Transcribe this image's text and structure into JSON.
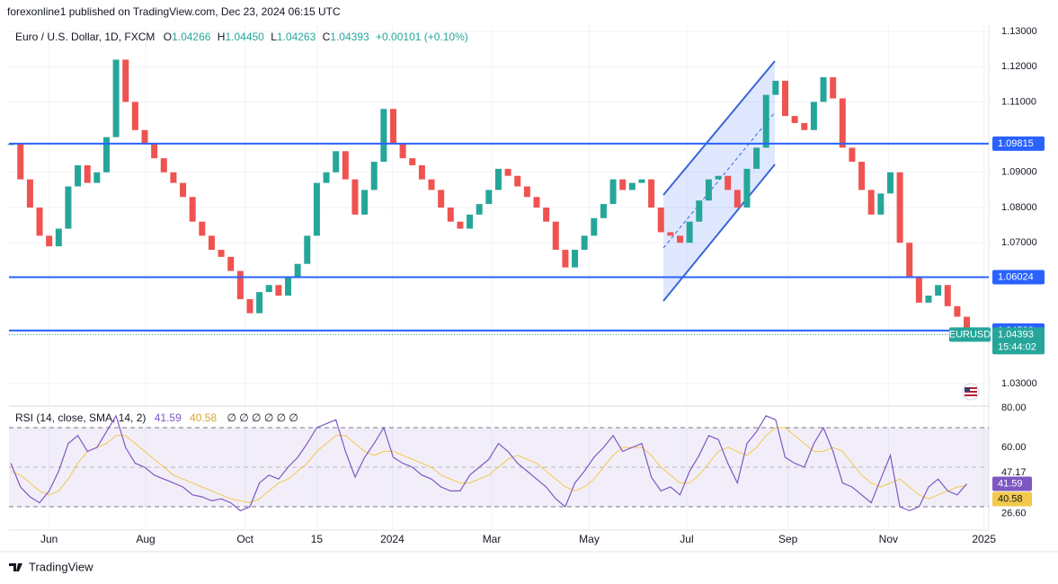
{
  "header": {
    "publisher": "forexonline1 published on TradingView.com, Dec 23, 2024 06:15 UTC"
  },
  "footer": {
    "brand": "TradingView"
  },
  "chart_data": [
    {
      "type": "candlestick",
      "title": "Euro / U.S. Dollar, 1D, FXCM",
      "legend": [
        {
          "key": "O",
          "text": "1.04266"
        },
        {
          "key": "H",
          "text": "1.04450"
        },
        {
          "key": "L",
          "text": "1.04263"
        },
        {
          "key": "C",
          "text": "1.04393"
        }
      ],
      "change": "+0.00101 (+0.10%)",
      "close": [
        1.098,
        1.088,
        1.08,
        1.072,
        1.069,
        1.074,
        1.086,
        1.092,
        1.087,
        1.09,
        1.1,
        1.122,
        1.11,
        1.102,
        1.098,
        1.094,
        1.09,
        1.087,
        1.083,
        1.076,
        1.072,
        1.068,
        1.066,
        1.062,
        1.054,
        1.05,
        1.056,
        1.058,
        1.055,
        1.06,
        1.064,
        1.072,
        1.087,
        1.09,
        1.096,
        1.088,
        1.078,
        1.085,
        1.093,
        1.108,
        1.098,
        1.094,
        1.092,
        1.088,
        1.085,
        1.08,
        1.076,
        1.074,
        1.078,
        1.081,
        1.085,
        1.091,
        1.089,
        1.086,
        1.083,
        1.08,
        1.076,
        1.068,
        1.063,
        1.068,
        1.072,
        1.077,
        1.081,
        1.088,
        1.085,
        1.087,
        1.088,
        1.08,
        1.073,
        1.072,
        1.07,
        1.076,
        1.082,
        1.088,
        1.089,
        1.085,
        1.08,
        1.091,
        1.097,
        1.112,
        1.116,
        1.106,
        1.104,
        1.102,
        1.11,
        1.117,
        1.111,
        1.097,
        1.093,
        1.085,
        1.078,
        1.084,
        1.09,
        1.07,
        1.06,
        1.053,
        1.055,
        1.058,
        1.052,
        1.049,
        1.04393
      ],
      "up_color": "#26a69a",
      "down_color": "#ef5350",
      "xlim": [
        -0.2,
        102.3
      ],
      "xticks": [
        {
          "value": 4.0,
          "label": "Jun"
        },
        {
          "value": 14.1,
          "label": "Aug"
        },
        {
          "value": 24.5,
          "label": "Oct"
        },
        {
          "value": 32.0,
          "label": "15"
        },
        {
          "value": 39.9,
          "label": "2024"
        },
        {
          "value": 50.3,
          "label": "Mar"
        },
        {
          "value": 60.5,
          "label": "May"
        },
        {
          "value": 70.7,
          "label": "Jul"
        },
        {
          "value": 81.3,
          "label": "Sep"
        },
        {
          "value": 91.8,
          "label": "Nov"
        },
        {
          "value": 101.8,
          "label": "2025"
        }
      ],
      "ylim": [
        1.02413,
        1.13179
      ],
      "yticks": [
        {
          "value": 1.13,
          "label": "1.13000"
        },
        {
          "value": 1.12,
          "label": "1.12000"
        },
        {
          "value": 1.11,
          "label": "1.11000"
        },
        {
          "value": 1.09,
          "label": "1.09000"
        },
        {
          "value": 1.08,
          "label": "1.08000"
        },
        {
          "value": 1.07,
          "label": "1.07000"
        },
        {
          "value": 1.03,
          "label": "1.03000"
        }
      ],
      "grid": true,
      "hlines": [
        1.09815,
        1.06024,
        1.04508
      ],
      "hline_color": "#2962ff",
      "last": {
        "value": 1.04393,
        "symbol": "EURUSD",
        "countdown": "15:44:02",
        "color": "#26a69a"
      }
    },
    {
      "type": "line",
      "title": "RSI (14, close, SMA, 14, 2)",
      "extra": "∅ ∅ ∅ ∅ ∅ ∅",
      "series": [
        {
          "color": "#7e57c2",
          "values": [
            52,
            40,
            35,
            32,
            38,
            48,
            62,
            66,
            58,
            60,
            68,
            76,
            60,
            52,
            50,
            46,
            44,
            42,
            40,
            36,
            35,
            33,
            34,
            32,
            28,
            30,
            42,
            46,
            44,
            50,
            55,
            62,
            70,
            72,
            74,
            58,
            45,
            55,
            62,
            70,
            55,
            52,
            50,
            46,
            44,
            40,
            38,
            38,
            46,
            50,
            54,
            62,
            58,
            52,
            48,
            44,
            40,
            34,
            30,
            42,
            48,
            55,
            60,
            66,
            58,
            60,
            62,
            45,
            38,
            40,
            36,
            48,
            56,
            66,
            64,
            52,
            42,
            62,
            68,
            76,
            74,
            55,
            52,
            50,
            62,
            70,
            58,
            42,
            40,
            36,
            32,
            44,
            56,
            30,
            28,
            30,
            40,
            44,
            38,
            36,
            41.59
          ]
        },
        {
          "color": "#f2c94c",
          "values": [
            48,
            46,
            42,
            38,
            36,
            38,
            44,
            52,
            58,
            60,
            62,
            66,
            66,
            62,
            58,
            54,
            50,
            46,
            44,
            42,
            40,
            38,
            36,
            34,
            33,
            32,
            34,
            38,
            42,
            44,
            48,
            52,
            58,
            62,
            66,
            66,
            62,
            58,
            56,
            58,
            58,
            56,
            54,
            52,
            50,
            46,
            44,
            42,
            42,
            44,
            46,
            50,
            54,
            56,
            54,
            52,
            48,
            44,
            40,
            38,
            40,
            44,
            50,
            56,
            60,
            60,
            60,
            56,
            50,
            46,
            42,
            42,
            46,
            52,
            58,
            60,
            58,
            56,
            60,
            66,
            70,
            70,
            66,
            62,
            58,
            58,
            60,
            58,
            52,
            46,
            42,
            40,
            42,
            44,
            40,
            36,
            34,
            36,
            38,
            40,
            40.58
          ]
        }
      ],
      "ylim": [
        17.3,
        80.9
      ],
      "yticks": [
        {
          "value": 80,
          "label": "80.00"
        },
        {
          "value": 60,
          "label": "60.00"
        },
        {
          "value": 47.17,
          "label": "47.17"
        },
        {
          "value": 26.6,
          "label": "26.60"
        }
      ],
      "band": [
        30,
        70
      ],
      "midline": 50
    }
  ]
}
